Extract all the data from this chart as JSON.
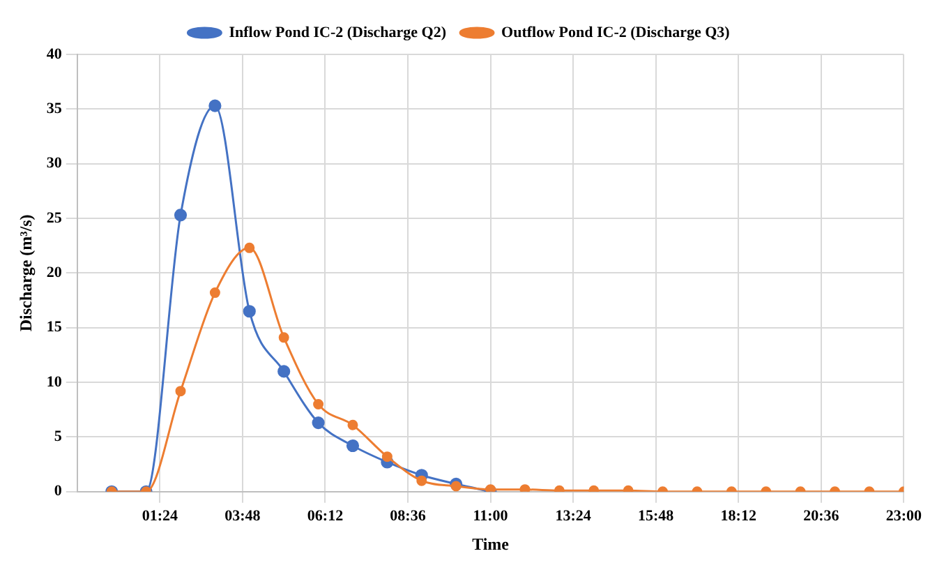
{
  "chart_data": {
    "type": "line",
    "xlabel": "Time",
    "ylabel": "Discharge (m³/s)",
    "x": [
      0,
      1,
      2,
      3,
      4,
      5,
      6,
      7,
      8,
      9,
      10,
      11,
      12,
      13,
      14,
      15,
      16,
      17,
      18,
      19,
      20,
      21,
      22,
      23
    ],
    "series": [
      {
        "name": "Inflow Pond IC-2 (Discharge Q2)",
        "color": "#4472c4",
        "values": [
          0,
          0,
          25.3,
          35.3,
          16.5,
          11,
          6.3,
          4.2,
          2.7,
          1.5,
          0.7,
          0,
          null,
          null,
          null,
          null,
          null,
          null,
          null,
          null,
          null,
          null,
          null,
          null
        ]
      },
      {
        "name": "Outflow Pond IC-2 (Discharge Q3)",
        "color": "#ed7d31",
        "values": [
          0,
          0,
          9.2,
          18.2,
          22.3,
          14.1,
          8,
          6.1,
          3.2,
          1,
          0.5,
          0.2,
          0.2,
          0.1,
          0.1,
          0.1,
          0,
          0,
          0,
          0,
          0,
          0,
          0,
          0
        ]
      }
    ],
    "xlim": [
      -1,
      23
    ],
    "xticks": [
      {
        "value": 1.4,
        "label": "01:24"
      },
      {
        "value": 3.8,
        "label": "03:48"
      },
      {
        "value": 6.2,
        "label": "06:12"
      },
      {
        "value": 8.6,
        "label": "08:36"
      },
      {
        "value": 11,
        "label": "11:00"
      },
      {
        "value": 13.4,
        "label": "13:24"
      },
      {
        "value": 15.8,
        "label": "15:48"
      },
      {
        "value": 18.2,
        "label": "18:12"
      },
      {
        "value": 20.6,
        "label": "20:36"
      },
      {
        "value": 23,
        "label": "23:00"
      }
    ],
    "ylim": [
      0,
      40
    ],
    "yticks": [
      0,
      5,
      10,
      15,
      20,
      25,
      30,
      35,
      40
    ],
    "grid": true,
    "legend": "top",
    "marker": "circle",
    "line_style": "solid"
  }
}
